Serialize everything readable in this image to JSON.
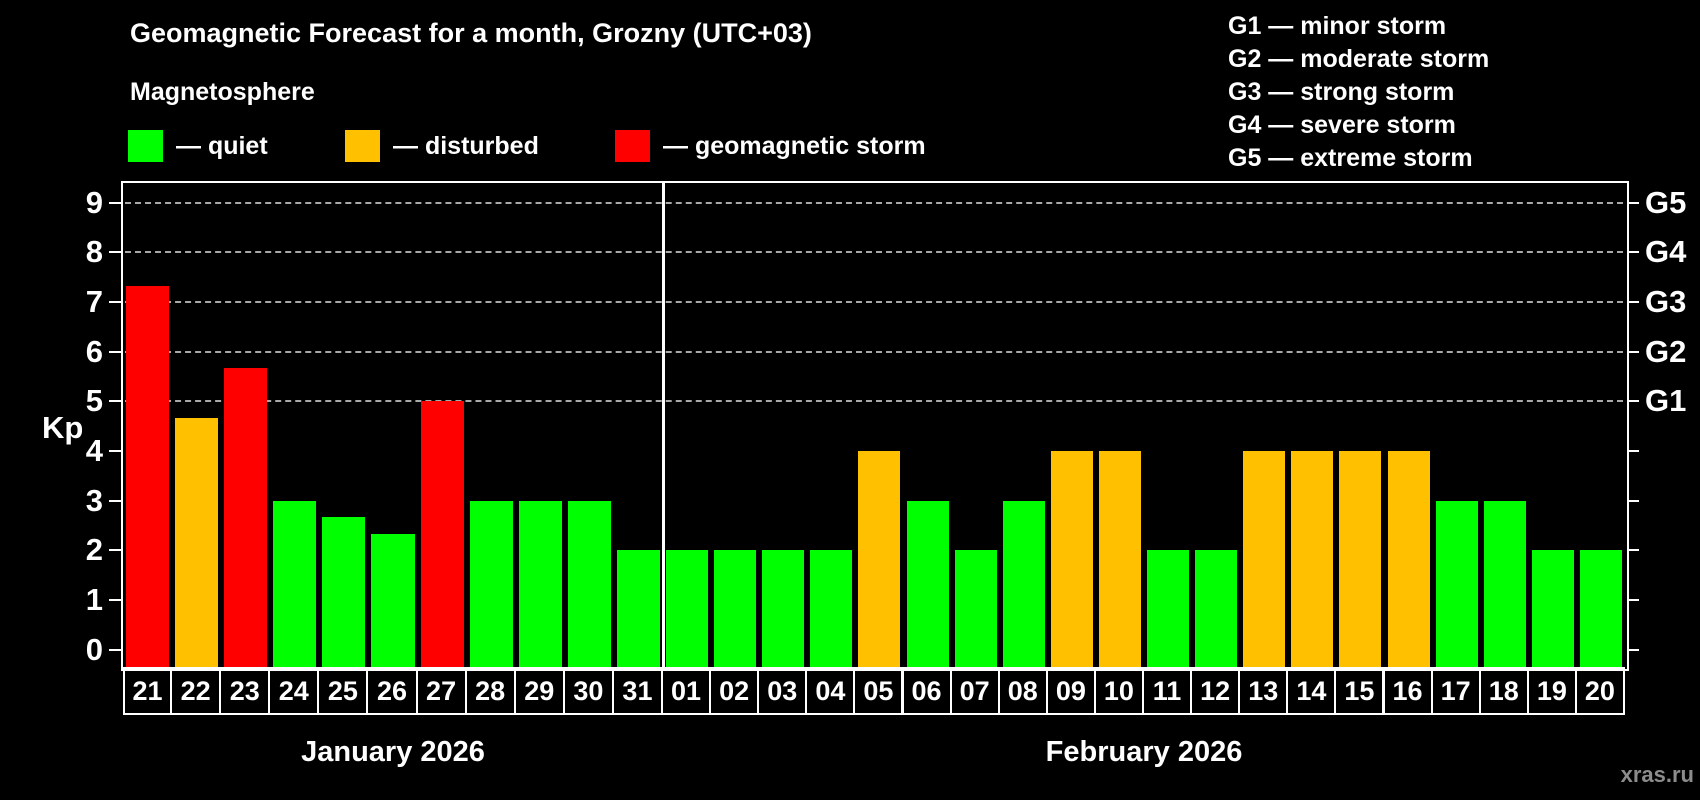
{
  "header": {
    "title": "Geomagnetic Forecast for a month, Grozny (UTC+03)",
    "subtitle": "Magnetosphere"
  },
  "legend": {
    "items": [
      {
        "name": "quiet",
        "label": "— quiet",
        "color": "#00ff00"
      },
      {
        "name": "disturbed",
        "label": "— disturbed",
        "color": "#ffc000"
      },
      {
        "name": "storm",
        "label": "— geomagnetic storm",
        "color": "#ff0000"
      }
    ]
  },
  "g_legend": {
    "items": [
      "G1 — minor storm",
      "G2 — moderate storm",
      "G3 — strong storm",
      "G4 — severe storm",
      "G5 — extreme storm"
    ]
  },
  "watermark": "xras.ru",
  "chart_data": {
    "type": "bar",
    "title": "Geomagnetic Forecast for a month, Grozny (UTC+03)",
    "ylabel": "Kp",
    "ylim": [
      0,
      9
    ],
    "y_ticks": [
      0,
      1,
      2,
      3,
      4,
      5,
      6,
      7,
      8,
      9
    ],
    "gridlines_at": [
      5,
      6,
      7,
      8,
      9
    ],
    "grid": "dashed horizontal at storm levels only",
    "legend_position": "top",
    "right_axis_labels": [
      {
        "value": 5,
        "label": "G1"
      },
      {
        "value": 6,
        "label": "G2"
      },
      {
        "value": 7,
        "label": "G3"
      },
      {
        "value": 8,
        "label": "G4"
      },
      {
        "value": 9,
        "label": "G5"
      }
    ],
    "status_colors": {
      "quiet": "#00ff00",
      "disturbed": "#ffc000",
      "storm": "#ff0000"
    },
    "months": [
      {
        "label": "January 2026",
        "days": [
          {
            "day": "21",
            "kp": 7.33,
            "status": "storm"
          },
          {
            "day": "22",
            "kp": 4.67,
            "status": "disturbed"
          },
          {
            "day": "23",
            "kp": 5.67,
            "status": "storm"
          },
          {
            "day": "24",
            "kp": 3.0,
            "status": "quiet"
          },
          {
            "day": "25",
            "kp": 2.67,
            "status": "quiet"
          },
          {
            "day": "26",
            "kp": 2.33,
            "status": "quiet"
          },
          {
            "day": "27",
            "kp": 5.0,
            "status": "storm"
          },
          {
            "day": "28",
            "kp": 3.0,
            "status": "quiet"
          },
          {
            "day": "29",
            "kp": 3.0,
            "status": "quiet"
          },
          {
            "day": "30",
            "kp": 3.0,
            "status": "quiet"
          },
          {
            "day": "31",
            "kp": 2.0,
            "status": "quiet"
          }
        ]
      },
      {
        "label": "February 2026",
        "days": [
          {
            "day": "01",
            "kp": 2.0,
            "status": "quiet"
          },
          {
            "day": "02",
            "kp": 2.0,
            "status": "quiet"
          },
          {
            "day": "03",
            "kp": 2.0,
            "status": "quiet"
          },
          {
            "day": "04",
            "kp": 2.0,
            "status": "quiet"
          },
          {
            "day": "05",
            "kp": 4.0,
            "status": "disturbed"
          },
          {
            "day": "06",
            "kp": 3.0,
            "status": "quiet"
          },
          {
            "day": "07",
            "kp": 2.0,
            "status": "quiet"
          },
          {
            "day": "08",
            "kp": 3.0,
            "status": "quiet"
          },
          {
            "day": "09",
            "kp": 4.0,
            "status": "disturbed"
          },
          {
            "day": "10",
            "kp": 4.0,
            "status": "disturbed"
          },
          {
            "day": "11",
            "kp": 2.0,
            "status": "quiet"
          },
          {
            "day": "12",
            "kp": 2.0,
            "status": "quiet"
          },
          {
            "day": "13",
            "kp": 4.0,
            "status": "disturbed"
          },
          {
            "day": "14",
            "kp": 4.0,
            "status": "disturbed"
          },
          {
            "day": "15",
            "kp": 4.0,
            "status": "disturbed"
          },
          {
            "day": "16",
            "kp": 4.0,
            "status": "disturbed"
          },
          {
            "day": "17",
            "kp": 3.0,
            "status": "quiet"
          },
          {
            "day": "18",
            "kp": 3.0,
            "status": "quiet"
          },
          {
            "day": "19",
            "kp": 2.0,
            "status": "quiet"
          },
          {
            "day": "20",
            "kp": 2.0,
            "status": "quiet"
          }
        ]
      }
    ]
  }
}
